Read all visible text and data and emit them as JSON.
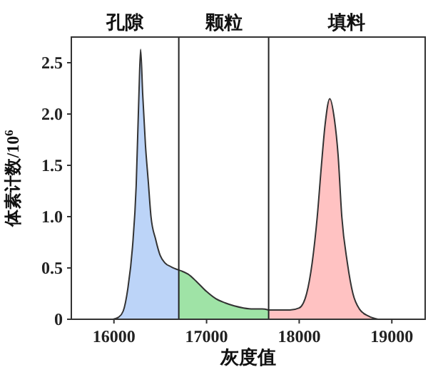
{
  "chart_data": {
    "type": "area",
    "xlabel": "灰度值",
    "ylabel": "体素计数/10$^{6}$",
    "xlim": [
      15540,
      19360
    ],
    "xticks": [
      16000,
      17000,
      18000,
      19000
    ],
    "ylim": [
      0,
      2.75
    ],
    "yticks": [
      0,
      {
        "value": 0.5,
        "label": "0.5"
      },
      {
        "value": 1,
        "label": "1.0"
      },
      {
        "value": 1.5,
        "label": "1.5"
      },
      {
        "value": 2,
        "label": "2.0"
      },
      {
        "value": 2.5,
        "label": "2.5"
      }
    ],
    "grid": false,
    "series": [
      {
        "color": "#bcd4f8",
        "x": [
          15990,
          16050,
          16100,
          16150,
          16200,
          16240,
          16270,
          16288,
          16310,
          16340,
          16370,
          16400,
          16450,
          16500,
          16550,
          16620,
          16700
        ],
        "values": [
          0,
          0.02,
          0.08,
          0.3,
          0.7,
          1.3,
          2.2,
          2.63,
          2.2,
          1.7,
          1.35,
          1.0,
          0.78,
          0.62,
          0.55,
          0.51,
          0.48
        ]
      },
      {
        "color": "#9fe3a6",
        "x": [
          16700,
          16800,
          16900,
          17000,
          17100,
          17200,
          17300,
          17400,
          17500,
          17600,
          17670
        ],
        "values": [
          0.48,
          0.44,
          0.36,
          0.27,
          0.2,
          0.16,
          0.13,
          0.11,
          0.1,
          0.1,
          0.09
        ]
      },
      {
        "color": "#ffc2c2",
        "x": [
          17670,
          17800,
          17900,
          18000,
          18080,
          18140,
          18195,
          18240,
          18280,
          18330,
          18380,
          18420,
          18460,
          18520,
          18580,
          18650,
          18750,
          18850
        ],
        "values": [
          0.09,
          0.09,
          0.09,
          0.11,
          0.25,
          0.55,
          1.0,
          1.5,
          1.9,
          2.15,
          1.95,
          1.6,
          1.0,
          0.55,
          0.25,
          0.1,
          0.03,
          0
        ]
      }
    ],
    "annotations": [
      "孔隙",
      "颗粒",
      "填料"
    ],
    "ref_lines": [
      {
        "axis": "x",
        "value": 16700,
        "color": "#222222"
      },
      {
        "axis": "x",
        "value": 17670,
        "color": "#222222"
      }
    ]
  }
}
